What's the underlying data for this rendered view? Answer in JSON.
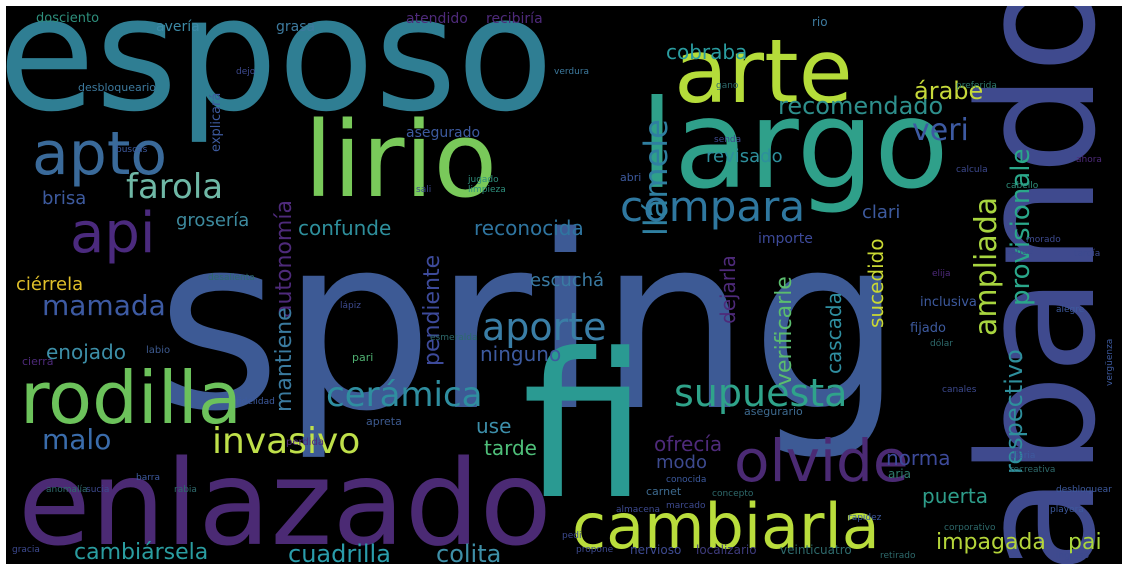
{
  "palette": {
    "background": "#000000",
    "blue": "#3b5b8c",
    "teal": "#2c8a8a",
    "green": "#4fb071",
    "lime": "#a8d93c",
    "purple": "#4e2a7a",
    "indigo": "#3d4a8f",
    "cyan": "#3a7fa0",
    "yellow": "#e0df2d"
  },
  "words": [
    {
      "text": "spring",
      "color": "#3d5a95"
    },
    {
      "text": "esposo",
      "color": "#2f7e93"
    },
    {
      "text": "abandone",
      "color": "#3f4a8e"
    },
    {
      "text": "fi",
      "color": "#2a9a92"
    },
    {
      "text": "enlazado",
      "color": "#4b2a74"
    },
    {
      "text": "lirio",
      "color": "#79c95a"
    },
    {
      "text": "largo",
      "color": "#2fa08a"
    },
    {
      "text": "arte",
      "color": "#b5dc3a"
    },
    {
      "text": "rodilla",
      "color": "#6cc25b"
    },
    {
      "text": "cambiarla",
      "color": "#b9dd3c"
    },
    {
      "text": "olvide",
      "color": "#4b2a74"
    },
    {
      "text": "apto",
      "color": "#3a6a9a"
    },
    {
      "text": "api",
      "color": "#4b2a7e"
    },
    {
      "text": "compara",
      "color": "#2f78a0"
    },
    {
      "text": "farola",
      "color": "#6fb8a6"
    },
    {
      "text": "invasivo",
      "color": "#bfe04a"
    },
    {
      "text": "supuesta",
      "color": "#2fa38a"
    },
    {
      "text": "cerámica",
      "color": "#2f8ea0"
    },
    {
      "text": "aporte",
      "color": "#3a7ea6"
    },
    {
      "text": "mamada",
      "color": "#3d5aa2"
    },
    {
      "text": "malo",
      "color": "#3a6cab"
    },
    {
      "text": "llámele",
      "color": "#2f7fa0"
    },
    {
      "text": "veri",
      "color": "#3d5aa2"
    },
    {
      "text": "recomendado",
      "color": "#2e8f8c"
    },
    {
      "text": "árabe",
      "color": "#c6d93a"
    },
    {
      "text": "ampliada",
      "color": "#a8d53f"
    },
    {
      "text": "provisionale",
      "color": "#2aa78a"
    },
    {
      "text": "respectivo",
      "color": "#2e8f9c"
    },
    {
      "text": "cuadrilla",
      "color": "#2a9dab"
    },
    {
      "text": "colita",
      "color": "#3e8fa7"
    },
    {
      "text": "cambiársela",
      "color": "#2a9da0"
    },
    {
      "text": "impagada",
      "color": "#b5d53a"
    },
    {
      "text": "pai",
      "color": "#aad63d"
    },
    {
      "text": "puerta",
      "color": "#2e9d8a"
    },
    {
      "text": "norma",
      "color": "#3d4a9a"
    },
    {
      "text": "tarde",
      "color": "#4fc07a"
    },
    {
      "text": "use",
      "color": "#3d8faa"
    },
    {
      "text": "ofrecía",
      "color": "#4e2a7a"
    },
    {
      "text": "modo",
      "color": "#3d4a8f"
    },
    {
      "text": "cascada",
      "color": "#2f8ea0"
    },
    {
      "text": "sucedido",
      "color": "#c9d833"
    },
    {
      "text": "verificarle",
      "color": "#5bbd6e"
    },
    {
      "text": "dejarla",
      "color": "#4e2a7a"
    },
    {
      "text": "pendiente",
      "color": "#3d4a9a"
    },
    {
      "text": "autonomía",
      "color": "#4e2a7a"
    },
    {
      "text": "mantiene",
      "color": "#3a7a9e"
    },
    {
      "text": "enojado",
      "color": "#3d8fa8"
    },
    {
      "text": "ninguno",
      "color": "#3d5a9e"
    },
    {
      "text": "escuchá",
      "color": "#3a7aa2"
    },
    {
      "text": "reconocida",
      "color": "#2f75a0"
    },
    {
      "text": "confunde",
      "color": "#2e8f9c"
    },
    {
      "text": "grosería",
      "color": "#3d8a9e"
    },
    {
      "text": "brisa",
      "color": "#3d5a9e"
    },
    {
      "text": "cobraba",
      "color": "#2a9da0"
    },
    {
      "text": "revisado",
      "color": "#2e8f9c"
    },
    {
      "text": "clari",
      "color": "#3d5a9e"
    },
    {
      "text": "importe",
      "color": "#3d4a9a"
    },
    {
      "text": "ciérrela",
      "color": "#e0c02a"
    },
    {
      "text": "asegurado",
      "color": "#3d5a9e"
    },
    {
      "text": "grasa",
      "color": "#3d7a9e"
    },
    {
      "text": "avería",
      "color": "#3d8aa6"
    },
    {
      "text": "atendido",
      "color": "#4e2a7a"
    },
    {
      "text": "recibiría",
      "color": "#4e2a7a"
    },
    {
      "text": "explicará",
      "color": "#3d5a9e"
    },
    {
      "text": "desbloqueario",
      "color": "#3d7a9e"
    },
    {
      "text": "dosciento",
      "color": "#2e8f7c"
    },
    {
      "text": "inclusiva",
      "color": "#3d5a9e"
    },
    {
      "text": "fijado",
      "color": "#3d5a9e"
    },
    {
      "text": "aria",
      "color": "#2e7a6c"
    },
    {
      "text": "nervioso",
      "color": "#3d4a8f"
    },
    {
      "text": "localizario",
      "color": "#3d3a7a"
    },
    {
      "text": "veinticuatro",
      "color": "#2e6a6c"
    },
    {
      "text": "carnet",
      "color": "#3d6a8f"
    },
    {
      "text": "asegurario",
      "color": "#3d6a8f"
    },
    {
      "text": "apreta",
      "color": "#3d5a8f"
    },
    {
      "text": "perdida",
      "color": "#4e2a7a"
    },
    {
      "text": "rio",
      "color": "#3d7a9e"
    },
    {
      "text": "abri",
      "color": "#3d5a9e"
    },
    {
      "text": "cierra",
      "color": "#4e2a7a"
    },
    {
      "text": "labio",
      "color": "#3d5a8f"
    },
    {
      "text": "pari",
      "color": "#4fb071"
    },
    {
      "text": "preferida",
      "color": "#2e7a6c"
    },
    {
      "text": "verdura",
      "color": "#3d7a9e"
    },
    {
      "text": "desbloquear",
      "color": "#3d5a9e"
    },
    {
      "text": "dejo",
      "color": "#3d4a8f"
    },
    {
      "text": "cabello",
      "color": "#2e8f7c"
    },
    {
      "text": "ahora",
      "color": "#4e2a7a"
    },
    {
      "text": "morado",
      "color": "#3d4a8f"
    },
    {
      "text": "playera",
      "color": "#3d5a9e"
    },
    {
      "text": "elija",
      "color": "#4e2a7a"
    },
    {
      "text": "saque",
      "color": "#3d4a8f"
    },
    {
      "text": "jugado",
      "color": "#2e8f7c"
    },
    {
      "text": "limpieza",
      "color": "#2e8f7c"
    },
    {
      "text": "sali",
      "color": "#3d4a8f"
    },
    {
      "text": "desalienta",
      "color": "#2e6a6c"
    },
    {
      "text": "vergüenza",
      "color": "#3d5a9e"
    },
    {
      "text": "senda",
      "color": "#3d4a8f"
    },
    {
      "text": "recreativa",
      "color": "#2e6a6c"
    },
    {
      "text": "corporativo",
      "color": "#2e6a6c"
    },
    {
      "text": "propone",
      "color": "#3d4a8f"
    },
    {
      "text": "diaria",
      "color": "#3d5a9e"
    },
    {
      "text": "canales",
      "color": "#3d4a8f"
    },
    {
      "text": "ingreso",
      "color": "#3d4a8f"
    },
    {
      "text": "retirado",
      "color": "#2e6a6c"
    },
    {
      "text": "calcula",
      "color": "#3d4a8f"
    },
    {
      "text": "barra",
      "color": "#3d5a9e"
    },
    {
      "text": "rabia",
      "color": "#2e6a6c"
    },
    {
      "text": "gracia",
      "color": "#3d4a8f"
    },
    {
      "text": "pedi",
      "color": "#3d4a8f"
    },
    {
      "text": "alegre",
      "color": "#3d5a9e"
    },
    {
      "text": "sucia",
      "color": "#3d4a8f"
    },
    {
      "text": "concepto",
      "color": "#2e6a6c"
    },
    {
      "text": "anomalía",
      "color": "#2e6a6c"
    },
    {
      "text": "rapidez",
      "color": "#3d5a9e"
    },
    {
      "text": "almacena",
      "color": "#3d4a8f"
    },
    {
      "text": "esmeralda",
      "color": "#2e6a6c"
    },
    {
      "text": "lápiz",
      "color": "#3d4a8f"
    },
    {
      "text": "buscas",
      "color": "#3d5a9e"
    },
    {
      "text": "gano",
      "color": "#2e6a6c"
    },
    {
      "text": "tardía",
      "color": "#3d4a8f"
    },
    {
      "text": "fidelidad",
      "color": "#3d5a9e"
    },
    {
      "text": "dólar",
      "color": "#2e6a6c"
    },
    {
      "text": "conocida",
      "color": "#3d5a9e"
    },
    {
      "text": "marcado",
      "color": "#3d4a8f"
    }
  ]
}
